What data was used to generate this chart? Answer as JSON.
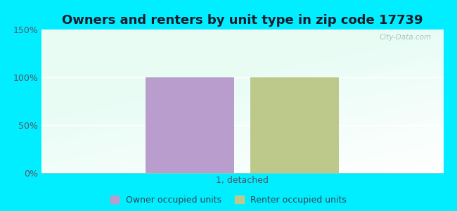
{
  "title": "Owners and renters by unit type in zip code 17739",
  "categories": [
    "1, detached"
  ],
  "owner_values": [
    100
  ],
  "renter_values": [
    100
  ],
  "owner_color": "#b99dcc",
  "renter_color": "#bcc98a",
  "ylim": [
    0,
    150
  ],
  "yticks": [
    0,
    50,
    100,
    150
  ],
  "ytick_labels": [
    "0%",
    "50%",
    "100%",
    "150%"
  ],
  "background_color": "#00eeff",
  "watermark": "City-Data.com",
  "legend_owner": "Owner occupied units",
  "legend_renter": "Renter occupied units",
  "bar_width": 0.22,
  "title_fontsize": 13,
  "tick_fontsize": 9,
  "xlabel_fontsize": 9,
  "plot_bg_color_tl": "#e8f8f0",
  "plot_bg_color_br": "#f8fefc"
}
